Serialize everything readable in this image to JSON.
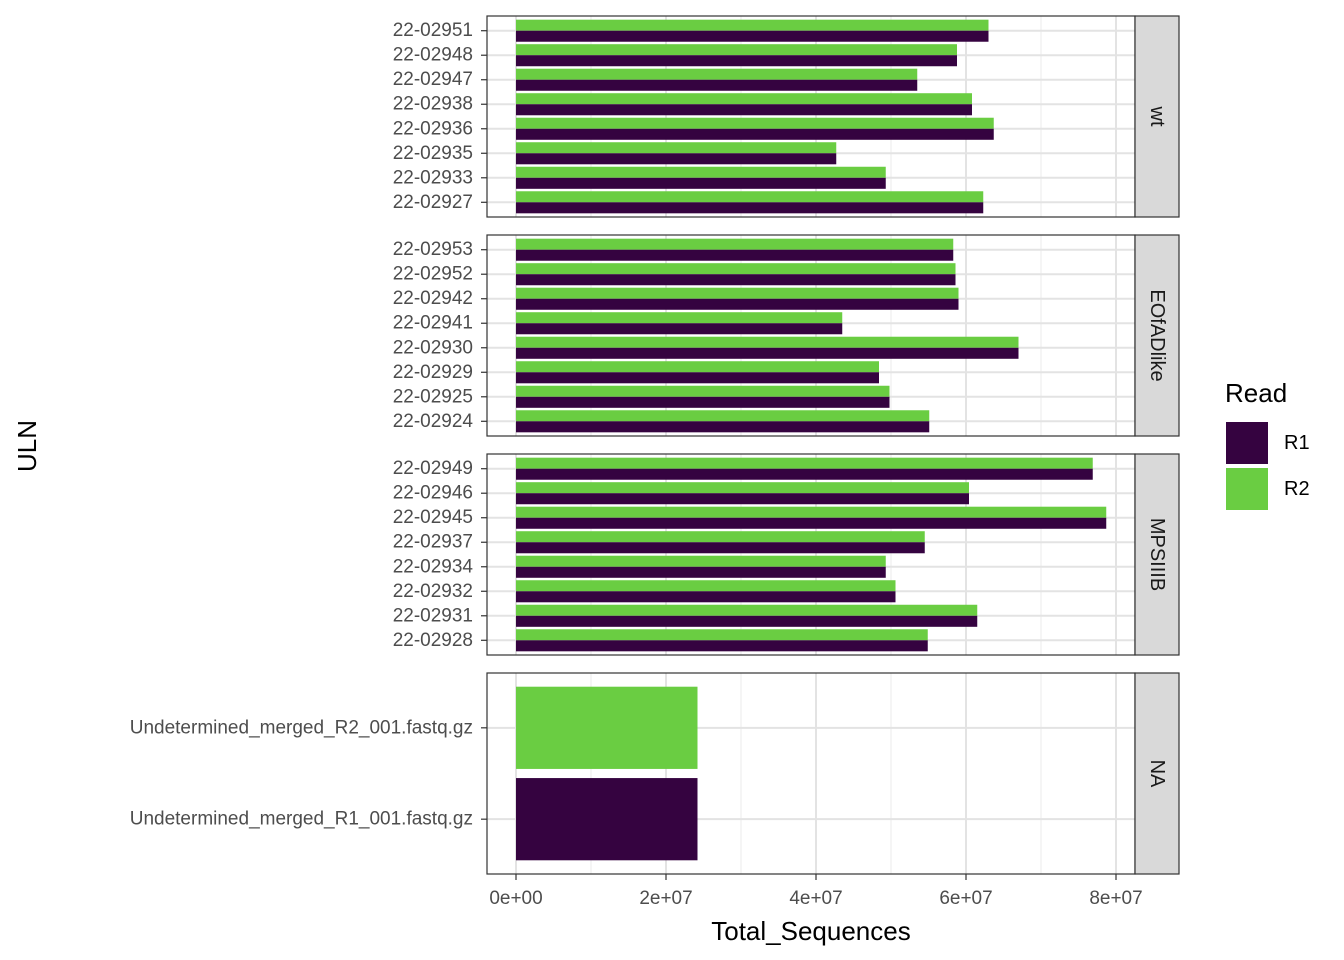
{
  "chart_data": {
    "type": "bar",
    "orientation": "horizontal",
    "xlabel": "Total_Sequences",
    "ylabel": "ULN",
    "x_ticks": [
      0,
      20000000,
      40000000,
      60000000,
      80000000
    ],
    "x_tick_labels": [
      "0e+00",
      "2e+07",
      "4e+07",
      "6e+07",
      "8e+07"
    ],
    "grid": true,
    "legend": {
      "title": "Read",
      "position": "right",
      "entries": [
        {
          "name": "R1",
          "color": "#350340"
        },
        {
          "name": "R2",
          "color": "#6ACD42"
        }
      ]
    },
    "facets": [
      {
        "strip": "wt",
        "categories": [
          "22-02951",
          "22-02948",
          "22-02947",
          "22-02938",
          "22-02936",
          "22-02935",
          "22-02933",
          "22-02927"
        ],
        "series": [
          {
            "name": "R1",
            "values": [
              63000000,
              58800000,
              53500000,
              60800000,
              63700000,
              42700000,
              49300000,
              62300000
            ]
          },
          {
            "name": "R2",
            "values": [
              63000000,
              58800000,
              53500000,
              60800000,
              63700000,
              42700000,
              49300000,
              62300000
            ]
          }
        ]
      },
      {
        "strip": "EOfADlike",
        "categories": [
          "22-02953",
          "22-02952",
          "22-02942",
          "22-02941",
          "22-02930",
          "22-02929",
          "22-02925",
          "22-02924"
        ],
        "series": [
          {
            "name": "R1",
            "values": [
              58300000,
              58600000,
              59000000,
              43500000,
              67000000,
              48400000,
              49800000,
              55100000
            ]
          },
          {
            "name": "R2",
            "values": [
              58300000,
              58600000,
              59000000,
              43500000,
              67000000,
              48400000,
              49800000,
              55100000
            ]
          }
        ]
      },
      {
        "strip": "MPSIIIB",
        "categories": [
          "22-02949",
          "22-02946",
          "22-02945",
          "22-02937",
          "22-02934",
          "22-02932",
          "22-02931",
          "22-02928"
        ],
        "series": [
          {
            "name": "R1",
            "values": [
              76900000,
              60400000,
              78700000,
              54500000,
              49300000,
              50600000,
              61500000,
              54900000
            ]
          },
          {
            "name": "R2",
            "values": [
              76900000,
              60400000,
              78700000,
              54500000,
              49300000,
              50600000,
              61500000,
              54900000
            ]
          }
        ]
      },
      {
        "strip": "NA",
        "categories": [
          "Undetermined_merged_R2_001.fastq.gz",
          "Undetermined_merged_R1_001.fastq.gz"
        ],
        "bars": [
          {
            "category": "Undetermined_merged_R2_001.fastq.gz",
            "series": "R2",
            "value": 24200000
          },
          {
            "category": "Undetermined_merged_R1_001.fastq.gz",
            "series": "R1",
            "value": 24200000
          }
        ]
      }
    ]
  }
}
